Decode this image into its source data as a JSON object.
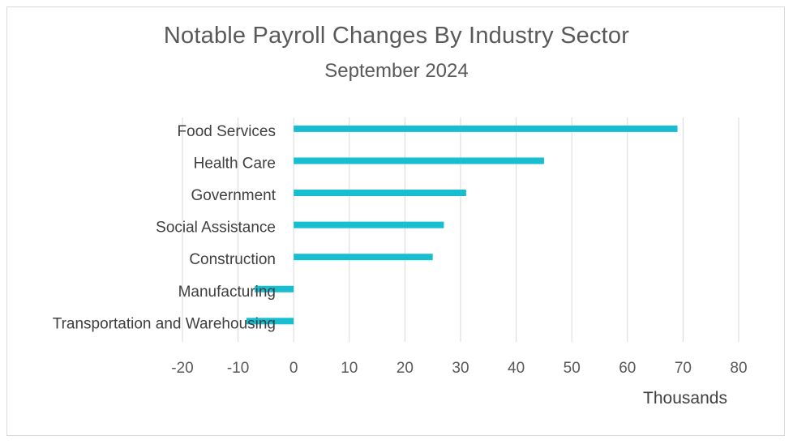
{
  "chart_data": {
    "type": "bar",
    "orientation": "horizontal",
    "title": "Notable Payroll Changes By Industry Sector",
    "subtitle": "September 2024",
    "xlabel": "Thousands",
    "categories": [
      "Food Services",
      "Health Care",
      "Government",
      "Social Assistance",
      "Construction",
      "Manufacturing",
      "Transportation and Warehousing"
    ],
    "values": [
      69,
      45,
      31,
      27,
      25,
      -7,
      -8.5
    ],
    "xlim": [
      -20,
      80
    ],
    "xticks": [
      "-20",
      "-10",
      "0",
      "10",
      "20",
      "30",
      "40",
      "50",
      "60",
      "70",
      "80"
    ],
    "grid": "vertical",
    "color": "#17becf"
  }
}
